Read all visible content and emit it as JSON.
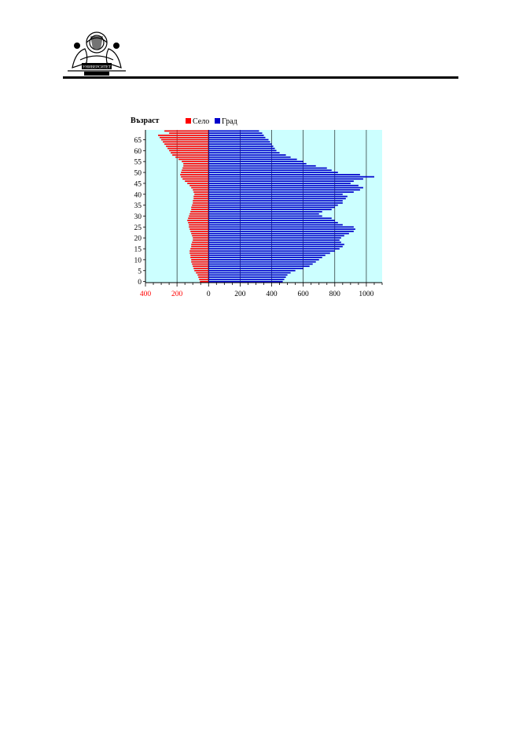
{
  "logo": {
    "icon": "university-emblem-icon",
    "text": "УНИВЕРСИТЕТ"
  },
  "colors": {
    "plot_bg": "#ccffff",
    "village": "#ff0000",
    "city": "#0000cc",
    "rule": "#000000"
  },
  "chart_data": {
    "type": "bar",
    "orientation": "horizontal",
    "title": "",
    "ylabel": "Възраст",
    "xlabel": "",
    "xlim": [
      -400,
      1100
    ],
    "x_tick_labels": [
      "400",
      "200",
      "0",
      "200",
      "400",
      "600",
      "800",
      "1000"
    ],
    "x_tick_values": [
      -400,
      -200,
      0,
      200,
      400,
      600,
      800,
      1000
    ],
    "y_tick_labels": [
      "0",
      "5",
      "10",
      "15",
      "20",
      "25",
      "30",
      "35",
      "40",
      "45",
      "50",
      "55",
      "60",
      "65"
    ],
    "grid": "vertical",
    "legend": "top",
    "age_min": 0,
    "age_max": 69,
    "series": [
      {
        "name": "Село",
        "color": "#ff0000",
        "values": [
          55,
          60,
          65,
          70,
          80,
          90,
          95,
          100,
          105,
          110,
          110,
          115,
          115,
          120,
          120,
          115,
          110,
          110,
          105,
          100,
          100,
          105,
          110,
          115,
          120,
          125,
          125,
          130,
          135,
          130,
          125,
          120,
          115,
          110,
          110,
          105,
          100,
          100,
          95,
          95,
          90,
          95,
          100,
          110,
          120,
          135,
          150,
          165,
          175,
          180,
          175,
          170,
          165,
          160,
          160,
          170,
          190,
          210,
          230,
          240,
          250,
          260,
          270,
          280,
          290,
          300,
          310,
          320,
          250,
          280
        ]
      },
      {
        "name": "Град",
        "color": "#0000cc",
        "values": [
          470,
          480,
          490,
          500,
          520,
          550,
          600,
          640,
          660,
          680,
          700,
          720,
          740,
          770,
          800,
          830,
          850,
          860,
          840,
          830,
          840,
          860,
          890,
          920,
          930,
          920,
          850,
          820,
          800,
          780,
          720,
          700,
          720,
          780,
          800,
          820,
          850,
          850,
          870,
          880,
          850,
          920,
          960,
          980,
          950,
          900,
          920,
          980,
          1050,
          960,
          820,
          780,
          750,
          680,
          620,
          600,
          560,
          520,
          490,
          450,
          430,
          420,
          410,
          400,
          390,
          380,
          360,
          350,
          340,
          320
        ]
      }
    ]
  }
}
